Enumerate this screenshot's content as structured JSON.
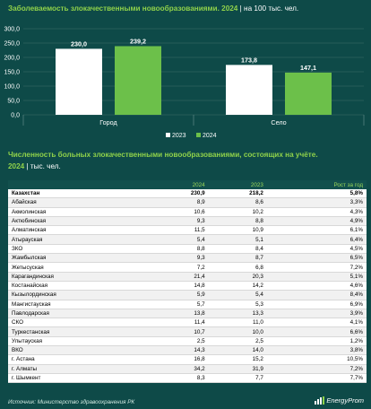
{
  "chart_title": "Заболеваемость злокачественными новообразованиями. 2024",
  "chart_unit": "на 100 тыс. чел.",
  "table_title": "Численность больных злокачественными новообразованиями, состоящих на учёте.",
  "table_year": "2024",
  "table_unit": "тыс. чел.",
  "source": "Источник: Министерство здравоохранения РК",
  "logo": "EnergyProm",
  "colors": {
    "background": "#0e4a48",
    "accent": "#8fd14a",
    "bar2023": "#ffffff",
    "bar2024": "#6cc04a"
  },
  "chart_data": {
    "type": "bar",
    "categories": [
      "Город",
      "Село"
    ],
    "series": [
      {
        "name": "2023",
        "values": [
          230.0,
          173.8
        ],
        "labels": [
          "230,0",
          "173,8"
        ]
      },
      {
        "name": "2024",
        "values": [
          239.2,
          147.1
        ],
        "labels": [
          "239,2",
          "147,1"
        ]
      }
    ],
    "ylim": [
      0,
      300
    ],
    "yticks": [
      "0,0",
      "50,0",
      "100,0",
      "150,0",
      "200,0",
      "250,0",
      "300,0"
    ],
    "legend": "bottom-center",
    "grid": true
  },
  "table": {
    "headers": [
      "",
      "2024",
      "2023",
      "Рост за год"
    ],
    "rows": [
      [
        "Казахстан",
        "230,9",
        "218,2",
        "5,8%"
      ],
      [
        "Абайская",
        "8,9",
        "8,6",
        "3,3%"
      ],
      [
        "Акмолинская",
        "10,6",
        "10,2",
        "4,3%"
      ],
      [
        "Актюбинская",
        "9,3",
        "8,8",
        "4,9%"
      ],
      [
        "Алматинская",
        "11,5",
        "10,9",
        "6,1%"
      ],
      [
        "Атырауская",
        "5,4",
        "5,1",
        "6,4%"
      ],
      [
        "ЗКО",
        "8,8",
        "8,4",
        "4,5%"
      ],
      [
        "Жамбылская",
        "9,3",
        "8,7",
        "6,5%"
      ],
      [
        "Жетысуская",
        "7,2",
        "6,8",
        "7,2%"
      ],
      [
        "Карагандинская",
        "21,4",
        "20,3",
        "5,1%"
      ],
      [
        "Костанайская",
        "14,8",
        "14,2",
        "4,6%"
      ],
      [
        "Кызылординская",
        "5,9",
        "5,4",
        "8,4%"
      ],
      [
        "Мангистауская",
        "5,7",
        "5,3",
        "6,9%"
      ],
      [
        "Павлодарская",
        "13,8",
        "13,3",
        "3,9%"
      ],
      [
        "СКО",
        "11,4",
        "11,0",
        "4,1%"
      ],
      [
        "Туркестанская",
        "10,7",
        "10,0",
        "6,6%"
      ],
      [
        "Улытауская",
        "2,5",
        "2,5",
        "1,2%"
      ],
      [
        "ВКО",
        "14,3",
        "14,0",
        "3,8%"
      ],
      [
        "г. Астана",
        "16,8",
        "15,2",
        "10,5%"
      ],
      [
        "г. Алматы",
        "34,2",
        "31,9",
        "7,2%"
      ],
      [
        "г. Шымкент",
        "8,3",
        "7,7",
        "7,7%"
      ]
    ]
  }
}
